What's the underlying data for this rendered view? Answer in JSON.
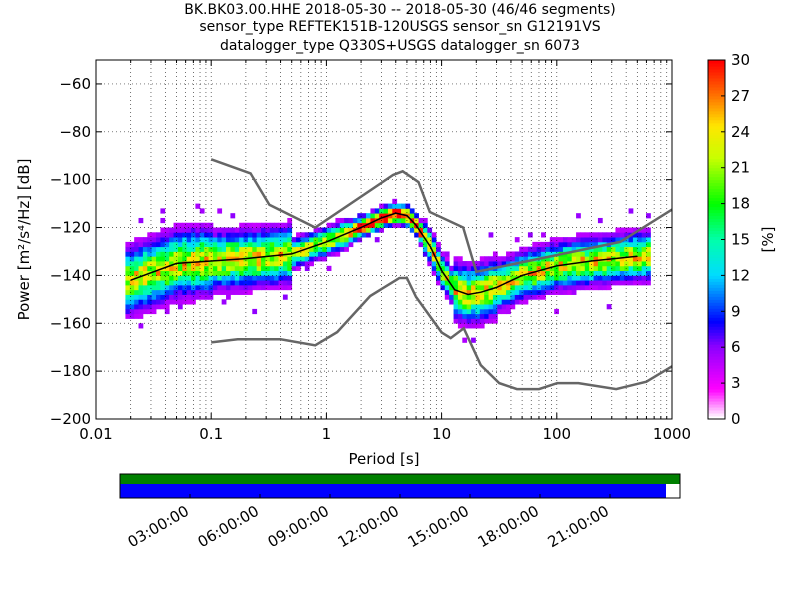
{
  "chart_data": {
    "type": "heatmap",
    "title_lines": [
      "BK.BK03.00.HHE   2018-05-30 -- 2018-05-30  (46/46 segments)",
      "sensor_type REFTEK151B-120USGS sensor_sn G12191VS",
      "datalogger_type Q330S+USGS datalogger_sn 6073"
    ],
    "xlabel": "Period [s]",
    "ylabel": "Power [m²/s⁴/Hz] [dB]",
    "x_scale": "log",
    "xlim": [
      0.01,
      1000
    ],
    "ylim": [
      -200,
      -50
    ],
    "x_ticks": [
      "0.01",
      "0.1",
      "1",
      "10",
      "100",
      "1000"
    ],
    "y_ticks": [
      "−200",
      "−180",
      "−160",
      "−140",
      "−120",
      "−100",
      "−80",
      "−60"
    ],
    "colorbar": {
      "label": "[%]",
      "range": [
        0,
        30
      ],
      "ticks": [
        "0",
        "3",
        "6",
        "9",
        "12",
        "15",
        "18",
        "21",
        "24",
        "27",
        "30"
      ]
    },
    "mode_curve": {
      "x": [
        0.02,
        0.05,
        0.1,
        0.2,
        0.5,
        1,
        2,
        3,
        4,
        5,
        6,
        8,
        10,
        13,
        17,
        22,
        30,
        50,
        100,
        200,
        500
      ],
      "y": [
        -142,
        -135,
        -134,
        -133,
        -131,
        -126,
        -120,
        -116,
        -114,
        -115,
        -119,
        -128,
        -138,
        -146,
        -148,
        -147,
        -145,
        -140,
        -136,
        -134,
        -132
      ]
    },
    "new_high_noise_model": {
      "x": [
        0.1,
        0.22,
        0.32,
        0.8,
        3.8,
        4.6,
        6.3,
        7.9,
        15.4,
        20,
        354.8,
        1000
      ],
      "y": [
        -91.5,
        -97.4,
        -110.5,
        -120.0,
        -98.0,
        -96.5,
        -101.0,
        -113.5,
        -120.0,
        -138.5,
        -126.0,
        -112.5
      ]
    },
    "new_low_noise_model": {
      "x": [
        0.1,
        0.17,
        0.4,
        0.8,
        1.24,
        2.4,
        4.3,
        5.0,
        6.0,
        10.0,
        12.0,
        15.6,
        21.9,
        31.6,
        45,
        70,
        101,
        154,
        328,
        600,
        1000
      ],
      "y": [
        -168.0,
        -166.7,
        -166.7,
        -169.2,
        -163.7,
        -148.6,
        -141.1,
        -141.1,
        -149.0,
        -163.8,
        -166.2,
        -162.1,
        -177.5,
        -185.0,
        -187.5,
        -187.5,
        -185.0,
        -185.0,
        -187.5,
        -184.4,
        -178.0
      ]
    },
    "data_coverage": {
      "ticks": [
        "03:00:00",
        "06:00:00",
        "09:00:00",
        "12:00:00",
        "15:00:00",
        "18:00:00",
        "21:00:00"
      ],
      "fraction_covered": 0.975
    }
  }
}
